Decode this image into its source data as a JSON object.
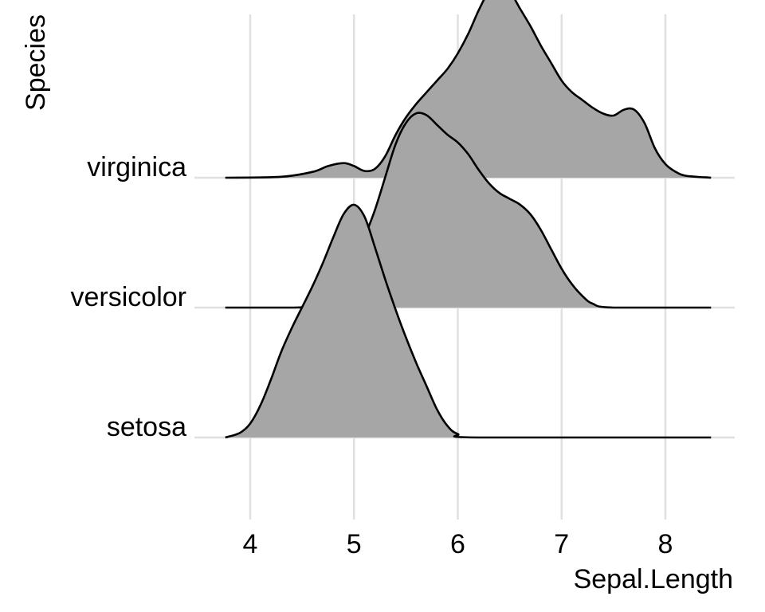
{
  "chart_data": {
    "type": "ridgeline",
    "title": "",
    "xlabel": "Sepal.Length",
    "ylabel": "Species",
    "xlim": [
      3.76,
      8.44
    ],
    "x_ticks": [
      "4",
      "5",
      "6",
      "7",
      "8"
    ],
    "x_tick_values": [
      4,
      5,
      6,
      7,
      8
    ],
    "categories": [
      "setosa",
      "versicolor",
      "virginica"
    ],
    "grid": "major vertical and horizontal, light grey",
    "fill_color": "#a6a6a6",
    "line_color": "#000000",
    "gridline_color": "#e0e0e0",
    "relative_heights": [
      1.0,
      0.835,
      0.835
    ],
    "series": [
      {
        "name": "setosa",
        "density": [
          [
            3.76,
            0.0
          ],
          [
            3.9,
            0.02
          ],
          [
            4.0,
            0.06
          ],
          [
            4.1,
            0.14
          ],
          [
            4.2,
            0.25
          ],
          [
            4.3,
            0.37
          ],
          [
            4.4,
            0.47
          ],
          [
            4.5,
            0.56
          ],
          [
            4.6,
            0.65
          ],
          [
            4.7,
            0.75
          ],
          [
            4.8,
            0.86
          ],
          [
            4.9,
            0.96
          ],
          [
            5.0,
            1.0
          ],
          [
            5.1,
            0.95
          ],
          [
            5.2,
            0.82
          ],
          [
            5.3,
            0.68
          ],
          [
            5.4,
            0.55
          ],
          [
            5.5,
            0.43
          ],
          [
            5.6,
            0.32
          ],
          [
            5.7,
            0.22
          ],
          [
            5.8,
            0.12
          ],
          [
            5.9,
            0.05
          ],
          [
            6.0,
            0.015
          ],
          [
            6.2,
            0.0
          ],
          [
            8.44,
            0.0
          ]
        ]
      },
      {
        "name": "versicolor",
        "density": [
          [
            3.76,
            0.0
          ],
          [
            4.4,
            0.0
          ],
          [
            4.6,
            0.01
          ],
          [
            4.8,
            0.06
          ],
          [
            5.0,
            0.22
          ],
          [
            5.1,
            0.36
          ],
          [
            5.2,
            0.5
          ],
          [
            5.3,
            0.67
          ],
          [
            5.4,
            0.84
          ],
          [
            5.5,
            0.95
          ],
          [
            5.6,
            1.0
          ],
          [
            5.7,
            0.99
          ],
          [
            5.8,
            0.94
          ],
          [
            5.9,
            0.89
          ],
          [
            6.0,
            0.85
          ],
          [
            6.1,
            0.79
          ],
          [
            6.2,
            0.71
          ],
          [
            6.3,
            0.64
          ],
          [
            6.4,
            0.59
          ],
          [
            6.5,
            0.56
          ],
          [
            6.6,
            0.53
          ],
          [
            6.7,
            0.48
          ],
          [
            6.8,
            0.4
          ],
          [
            6.9,
            0.3
          ],
          [
            7.0,
            0.2
          ],
          [
            7.1,
            0.12
          ],
          [
            7.2,
            0.06
          ],
          [
            7.3,
            0.02
          ],
          [
            7.5,
            0.0
          ],
          [
            8.44,
            0.0
          ]
        ]
      },
      {
        "name": "virginica",
        "density": [
          [
            3.76,
            0.0
          ],
          [
            4.3,
            0.005
          ],
          [
            4.6,
            0.03
          ],
          [
            4.75,
            0.06
          ],
          [
            4.9,
            0.075
          ],
          [
            5.0,
            0.06
          ],
          [
            5.1,
            0.035
          ],
          [
            5.2,
            0.045
          ],
          [
            5.3,
            0.11
          ],
          [
            5.4,
            0.22
          ],
          [
            5.5,
            0.31
          ],
          [
            5.6,
            0.38
          ],
          [
            5.7,
            0.44
          ],
          [
            5.8,
            0.5
          ],
          [
            5.9,
            0.56
          ],
          [
            6.0,
            0.64
          ],
          [
            6.1,
            0.74
          ],
          [
            6.2,
            0.86
          ],
          [
            6.3,
            0.96
          ],
          [
            6.4,
            1.0
          ],
          [
            6.5,
            0.96
          ],
          [
            6.6,
            0.87
          ],
          [
            6.7,
            0.78
          ],
          [
            6.8,
            0.68
          ],
          [
            6.9,
            0.59
          ],
          [
            7.0,
            0.5
          ],
          [
            7.1,
            0.44
          ],
          [
            7.2,
            0.4
          ],
          [
            7.3,
            0.36
          ],
          [
            7.4,
            0.33
          ],
          [
            7.5,
            0.32
          ],
          [
            7.6,
            0.35
          ],
          [
            7.7,
            0.35
          ],
          [
            7.8,
            0.28
          ],
          [
            7.9,
            0.15
          ],
          [
            8.0,
            0.07
          ],
          [
            8.1,
            0.03
          ],
          [
            8.2,
            0.01
          ],
          [
            8.44,
            0.0
          ]
        ]
      }
    ]
  }
}
